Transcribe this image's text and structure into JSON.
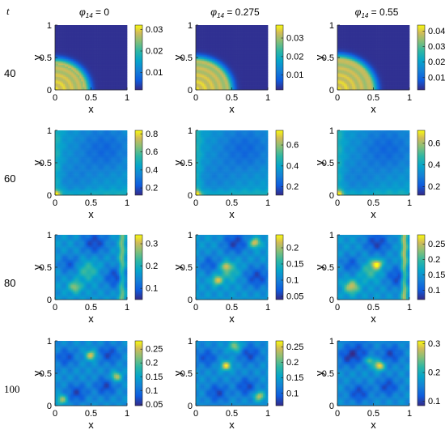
{
  "figure": {
    "row_header": "t",
    "column_titles": [
      {
        "symbol": "φ",
        "subscript": "14",
        "value": "= 0"
      },
      {
        "symbol": "φ",
        "subscript": "14",
        "value": "= 0.275"
      },
      {
        "symbol": "φ",
        "subscript": "14",
        "value": "= 0.55"
      }
    ],
    "row_labels": [
      "40",
      "60",
      "80",
      "100"
    ]
  },
  "chart_data": [
    {
      "type": "heatmap",
      "row": 0,
      "col": 0,
      "xlabel": "x",
      "ylabel": "y",
      "xlim": [
        0,
        1
      ],
      "ylim": [
        0,
        1
      ],
      "xticks": [
        "0",
        "0.5",
        "1"
      ],
      "yticks": [
        "0",
        "0.5",
        "1"
      ],
      "colorbar": {
        "min": 0.002,
        "max": 0.032,
        "ticks": [
          0.01,
          0.02,
          0.03
        ],
        "tick_labels": [
          "0.01",
          "0.02",
          "0.03"
        ]
      }
    },
    {
      "type": "heatmap",
      "row": 0,
      "col": 1,
      "xlabel": "x",
      "ylabel": "y",
      "xlim": [
        0,
        1
      ],
      "ylim": [
        0,
        1
      ],
      "xticks": [
        "0",
        "0.5",
        "1"
      ],
      "yticks": [
        "0",
        "0.5",
        "1"
      ],
      "colorbar": {
        "min": 0.002,
        "max": 0.037,
        "ticks": [
          0.01,
          0.02,
          0.03
        ],
        "tick_labels": [
          "0.01",
          "0.02",
          "0.03"
        ]
      }
    },
    {
      "type": "heatmap",
      "row": 0,
      "col": 2,
      "xlabel": "x",
      "ylabel": "y",
      "xlim": [
        0,
        1
      ],
      "ylim": [
        0,
        1
      ],
      "xticks": [
        "0",
        "0.5",
        "1"
      ],
      "yticks": [
        "0",
        "0.5",
        "1"
      ],
      "colorbar": {
        "min": 0.002,
        "max": 0.044,
        "ticks": [
          0.01,
          0.02,
          0.03,
          0.04
        ],
        "tick_labels": [
          "0.01",
          "0.02",
          "0.03",
          "0.04"
        ]
      }
    },
    {
      "type": "heatmap",
      "row": 1,
      "col": 0,
      "xlabel": "x",
      "ylabel": "y",
      "xlim": [
        0,
        1
      ],
      "ylim": [
        0,
        1
      ],
      "xticks": [
        "0",
        "0.5",
        "1"
      ],
      "yticks": [
        "0",
        "0.5",
        "1"
      ],
      "colorbar": {
        "min": 0.12,
        "max": 0.84,
        "ticks": [
          0.2,
          0.4,
          0.6,
          0.8
        ],
        "tick_labels": [
          "0.2",
          "0.4",
          "0.6",
          "0.8"
        ]
      }
    },
    {
      "type": "heatmap",
      "row": 1,
      "col": 1,
      "xlabel": "x",
      "ylabel": "y",
      "xlim": [
        0,
        1
      ],
      "ylim": [
        0,
        1
      ],
      "xticks": [
        "0",
        "0.5",
        "1"
      ],
      "yticks": [
        "0",
        "0.5",
        "1"
      ],
      "colorbar": {
        "min": 0.12,
        "max": 0.74,
        "ticks": [
          0.2,
          0.4,
          0.6
        ],
        "tick_labels": [
          "0.2",
          "0.4",
          "0.6"
        ]
      }
    },
    {
      "type": "heatmap",
      "row": 1,
      "col": 2,
      "xlabel": "x",
      "ylabel": "y",
      "xlim": [
        0,
        1
      ],
      "ylim": [
        0,
        1
      ],
      "xticks": [
        "0",
        "0.5",
        "1"
      ],
      "yticks": [
        "0",
        "0.5",
        "1"
      ],
      "colorbar": {
        "min": 0.12,
        "max": 0.72,
        "ticks": [
          0.2,
          0.4,
          0.6
        ],
        "tick_labels": [
          "0.2",
          "0.4",
          "0.6"
        ]
      }
    },
    {
      "type": "heatmap",
      "row": 2,
      "col": 0,
      "xlabel": "x",
      "ylabel": "y",
      "xlim": [
        0,
        1
      ],
      "ylim": [
        0,
        1
      ],
      "xticks": [
        "0",
        "0.5",
        "1"
      ],
      "yticks": [
        "0",
        "0.5",
        "1"
      ],
      "colorbar": {
        "min": 0.05,
        "max": 0.34,
        "ticks": [
          0.1,
          0.2,
          0.3
        ],
        "tick_labels": [
          "0.1",
          "0.2",
          "0.3"
        ]
      }
    },
    {
      "type": "heatmap",
      "row": 2,
      "col": 1,
      "xlabel": "x",
      "ylabel": "y",
      "xlim": [
        0,
        1
      ],
      "ylim": [
        0,
        1
      ],
      "xticks": [
        "0",
        "0.5",
        "1"
      ],
      "yticks": [
        "0",
        "0.5",
        "1"
      ],
      "colorbar": {
        "min": 0.04,
        "max": 0.24,
        "ticks": [
          0.05,
          0.1,
          0.15,
          0.2
        ],
        "tick_labels": [
          "0.05",
          "0.1",
          "0.15",
          "0.2"
        ]
      }
    },
    {
      "type": "heatmap",
      "row": 2,
      "col": 2,
      "xlabel": "x",
      "ylabel": "y",
      "xlim": [
        0,
        1
      ],
      "ylim": [
        0,
        1
      ],
      "xticks": [
        "0",
        "0.5",
        "1"
      ],
      "yticks": [
        "0",
        "0.5",
        "1"
      ],
      "colorbar": {
        "min": 0.07,
        "max": 0.28,
        "ticks": [
          0.1,
          0.15,
          0.2,
          0.25
        ],
        "tick_labels": [
          "0.1",
          "0.15",
          "0.2",
          "0.25"
        ]
      }
    },
    {
      "type": "heatmap",
      "row": 3,
      "col": 0,
      "xlabel": "x",
      "ylabel": "y",
      "xlim": [
        0,
        1
      ],
      "ylim": [
        0,
        1
      ],
      "xticks": [
        "0",
        "0.5",
        "1"
      ],
      "yticks": [
        "0",
        "0.5",
        "1"
      ],
      "colorbar": {
        "min": 0.045,
        "max": 0.28,
        "ticks": [
          0.05,
          0.1,
          0.15,
          0.2,
          0.25
        ],
        "tick_labels": [
          "0.05",
          "0.1",
          "0.15",
          "0.2",
          "0.25"
        ]
      }
    },
    {
      "type": "heatmap",
      "row": 3,
      "col": 1,
      "xlabel": "x",
      "ylabel": "y",
      "xlim": [
        0,
        1
      ],
      "ylim": [
        0,
        1
      ],
      "xticks": [
        "0",
        "0.5",
        "1"
      ],
      "yticks": [
        "0",
        "0.5",
        "1"
      ],
      "colorbar": {
        "min": 0.06,
        "max": 0.27,
        "ticks": [
          0.1,
          0.15,
          0.2,
          0.25
        ],
        "tick_labels": [
          "0.1",
          "0.15",
          "0.2",
          "0.25"
        ]
      }
    },
    {
      "type": "heatmap",
      "row": 3,
      "col": 2,
      "xlabel": "x",
      "ylabel": "y",
      "xlim": [
        0,
        1
      ],
      "ylim": [
        0,
        1
      ],
      "xticks": [
        "0",
        "0.5",
        "1"
      ],
      "yticks": [
        "0",
        "0.5",
        "1"
      ],
      "colorbar": {
        "min": 0.085,
        "max": 0.31,
        "ticks": [
          0.1,
          0.2,
          0.3
        ],
        "tick_labels": [
          "0.1",
          "0.2",
          "0.3"
        ]
      }
    }
  ]
}
